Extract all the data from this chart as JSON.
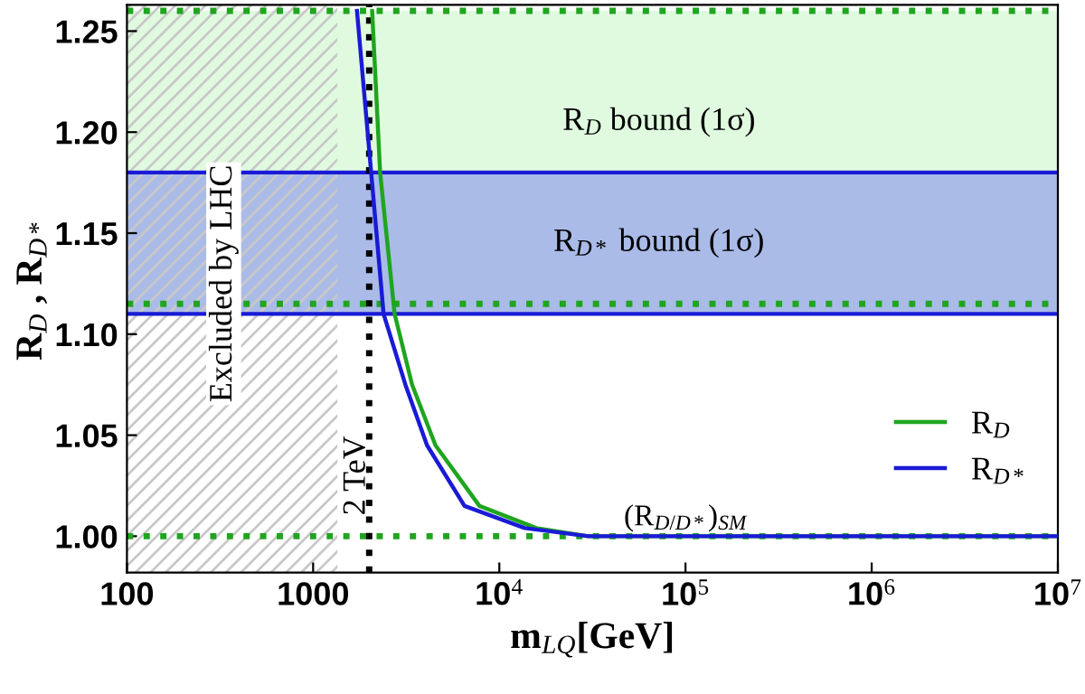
{
  "chart_data": {
    "type": "line",
    "xlabel": "m$_{LQ}$[GeV]",
    "ylabel": "R$_{D}$ , R$_{D*}$",
    "log": "x",
    "xlim": [
      100,
      10000000
    ],
    "ylim": [
      0.982,
      1.263
    ],
    "xticks": [
      100,
      1000,
      {
        "value": 10000,
        "label": "10$^{4}$"
      },
      {
        "value": 100000,
        "label": "10$^{5}$"
      },
      {
        "value": 1000000,
        "label": "10$^{6}$"
      },
      {
        "value": 10000000,
        "label": "10$^{7}$"
      }
    ],
    "yticks": [
      {
        "value": 1.0,
        "label": "1.00"
      },
      1.05,
      {
        "value": 1.1,
        "label": "1.10"
      },
      1.15,
      {
        "value": 1.2,
        "label": "1.20"
      },
      1.25
    ],
    "grid": false,
    "legend": "bottom right",
    "series": [
      {
        "name": "R$_{D}$",
        "color": "#1fa51f",
        "x": [
          2075,
          2290,
          2740,
          3400,
          4540,
          7820,
          15800,
          30000,
          10000000
        ],
        "values": [
          1.26,
          1.18,
          1.11,
          1.075,
          1.045,
          1.015,
          1.004,
          1.0,
          1.0
        ]
      },
      {
        "name": "R$_{D*}$",
        "color": "#1a1ad6",
        "x": [
          1720,
          2050,
          2390,
          3130,
          4090,
          6500,
          13700,
          30000,
          10000000
        ],
        "values": [
          1.26,
          1.18,
          1.11,
          1.075,
          1.045,
          1.015,
          1.004,
          1.0,
          1.0
        ]
      }
    ],
    "bands": [
      {
        "axis": "y",
        "from": 1.115,
        "to": 1.26,
        "label": "R$_{D}$ bound (1σ)",
        "color": "#e0fae0"
      },
      {
        "axis": "y",
        "from": 1.11,
        "to": 1.18,
        "label": "R$_{D*}$ bound (1σ)",
        "color": "#aabbe8"
      },
      {
        "axis": "x",
        "from": 100,
        "to": 1350,
        "label": "Excluded by LHC",
        "color": "#c8c8c8"
      }
    ],
    "ref_lines": [
      {
        "axis": "y",
        "value": 1.0,
        "color": "#1fa51f",
        "line_style": "dotted"
      },
      {
        "axis": "y",
        "value": 1.115,
        "color": "#1fa51f",
        "line_style": "dotted"
      },
      {
        "axis": "y",
        "value": 1.26,
        "color": "#1fa51f",
        "line_style": "dotted"
      },
      {
        "axis": "y",
        "value": 1.11,
        "color": "#1a1ad6",
        "line_style": "solid"
      },
      {
        "axis": "y",
        "value": 1.18,
        "color": "#1a1ad6",
        "line_style": "solid"
      },
      {
        "axis": "x",
        "value": 2000,
        "label": "2 TeV",
        "color": "#000000",
        "line_style": "dotted"
      }
    ],
    "annotations": [
      {
        "text": "(R$_{D/D*}$)$_{SM}$",
        "y": 1.0
      }
    ]
  }
}
